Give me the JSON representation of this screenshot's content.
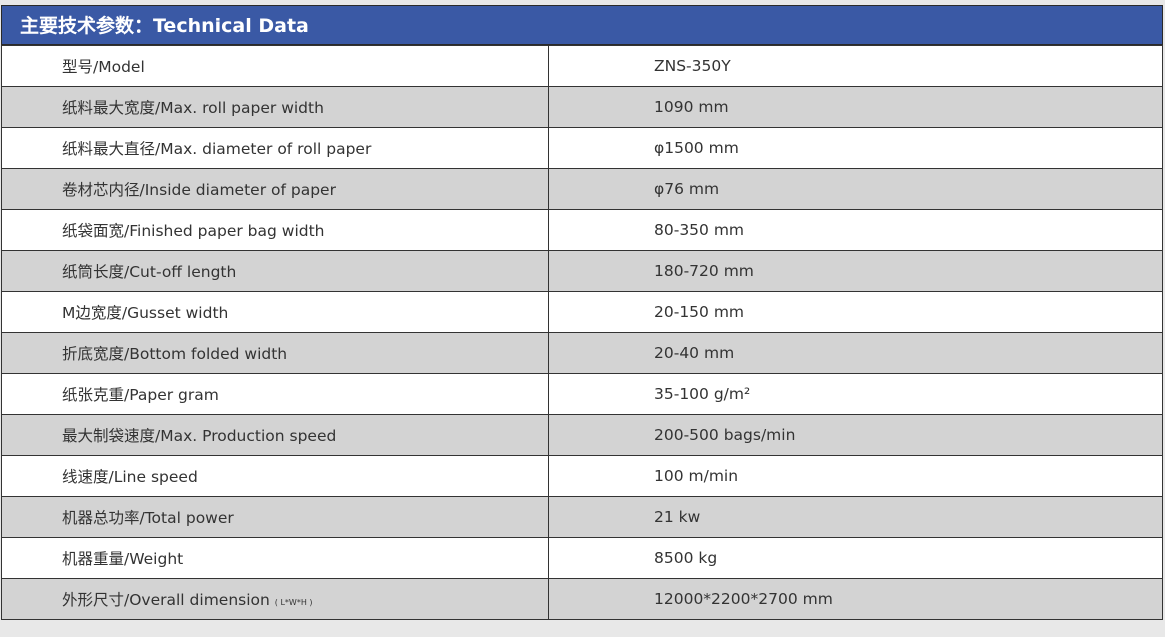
{
  "title": "主要技术参数：Technical Data",
  "colors": {
    "header": "#3a59a5",
    "alt_row": "#d3d3d3"
  },
  "rows": [
    {
      "label": "型号/Model",
      "value": "ZNS-350Y"
    },
    {
      "label": "纸料最大宽度/Max. roll paper width",
      "value": "1090 mm"
    },
    {
      "label": "纸料最大直径/Max. diameter of roll paper",
      "value": "φ1500 mm"
    },
    {
      "label": "卷材芯内径/Inside diameter of paper",
      "value": "φ76 mm"
    },
    {
      "label": "纸袋面宽/Finished paper bag width",
      "value": "80-350 mm"
    },
    {
      "label": "纸筒长度/Cut-off length",
      "value": "180-720 mm"
    },
    {
      "label": " M边宽度/Gusset width",
      "value": "20-150 mm"
    },
    {
      "label": "折底宽度/Bottom folded width",
      "value": "20-40 mm"
    },
    {
      "label": "纸张克重/Paper gram",
      "value": "35-100 g/m²"
    },
    {
      "label": "最大制袋速度/Max. Production speed",
      "value": "200-500 bags/min"
    },
    {
      "label": "线速度/Line speed",
      "value": "100 m/min"
    },
    {
      "label": "机器总功率/Total power",
      "value": "21 kw"
    },
    {
      "label": "机器重量/Weight",
      "value": "8500 kg"
    },
    {
      "label": "外形尺寸/Overall dimension",
      "suffix": "( L*W*H )",
      "value": "12000*2200*2700 mm"
    }
  ]
}
